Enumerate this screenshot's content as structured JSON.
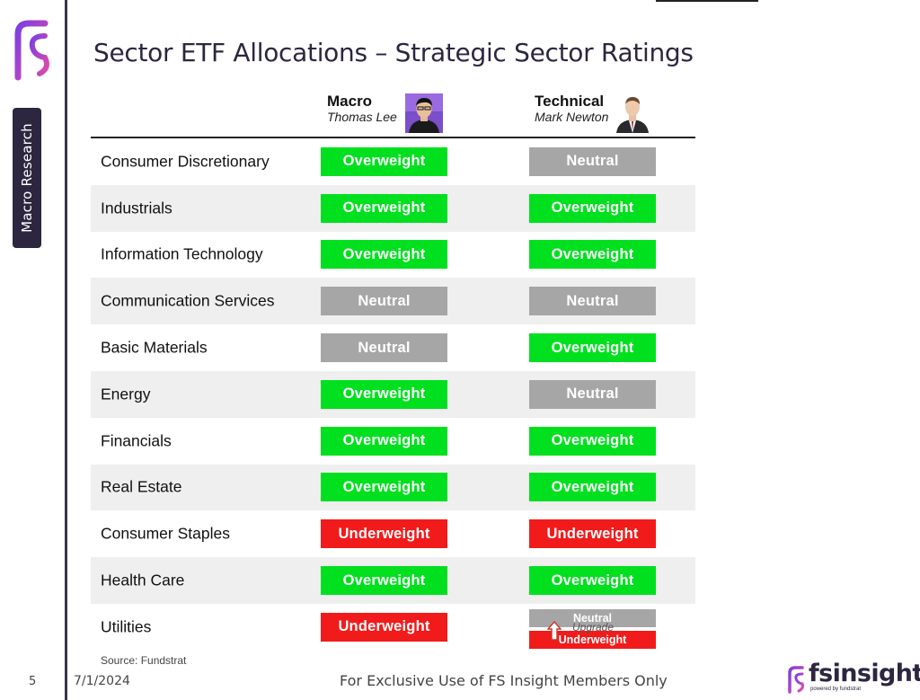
{
  "sidebar": {
    "section_label": "Macro Research"
  },
  "title": "Sector ETF Allocations – Strategic Sector Ratings",
  "columns": {
    "macro": {
      "heading": "Macro",
      "analyst": "Thomas Lee"
    },
    "technical": {
      "heading": "Technical",
      "analyst": "Mark Newton"
    }
  },
  "rows": [
    {
      "sector": "Consumer Discretionary",
      "macro": "Overweight",
      "technical": "Neutral"
    },
    {
      "sector": "Industrials",
      "macro": "Overweight",
      "technical": "Overweight"
    },
    {
      "sector": "Information Technology",
      "macro": "Overweight",
      "technical": "Overweight"
    },
    {
      "sector": "Communication Services",
      "macro": "Neutral",
      "technical": "Neutral"
    },
    {
      "sector": "Basic Materials",
      "macro": "Neutral",
      "technical": "Overweight"
    },
    {
      "sector": "Energy",
      "macro": "Overweight",
      "technical": "Neutral"
    },
    {
      "sector": "Financials",
      "macro": "Overweight",
      "technical": "Overweight"
    },
    {
      "sector": "Real Estate",
      "macro": "Overweight",
      "technical": "Overweight"
    },
    {
      "sector": "Consumer Staples",
      "macro": "Underweight",
      "technical": "Underweight"
    },
    {
      "sector": "Health Care",
      "macro": "Overweight",
      "technical": "Overweight"
    },
    {
      "sector": "Utilities",
      "macro": "Underweight",
      "technical_change": {
        "new": "Neutral",
        "label": "Upgrade",
        "old": "Underweight"
      }
    }
  ],
  "colors": {
    "Overweight": "#00e01f",
    "Neutral": "#a6a6a6",
    "Underweight": "#f21b1b",
    "brand": "#2d2640"
  },
  "footer": {
    "source": "Source: Fundstrat",
    "page_number": "5",
    "date": "7/1/2024",
    "disclaimer": "For Exclusive Use of FS Insight Members Only",
    "brand_name": "fsinsight",
    "brand_tagline": "powered by fundstrat"
  }
}
